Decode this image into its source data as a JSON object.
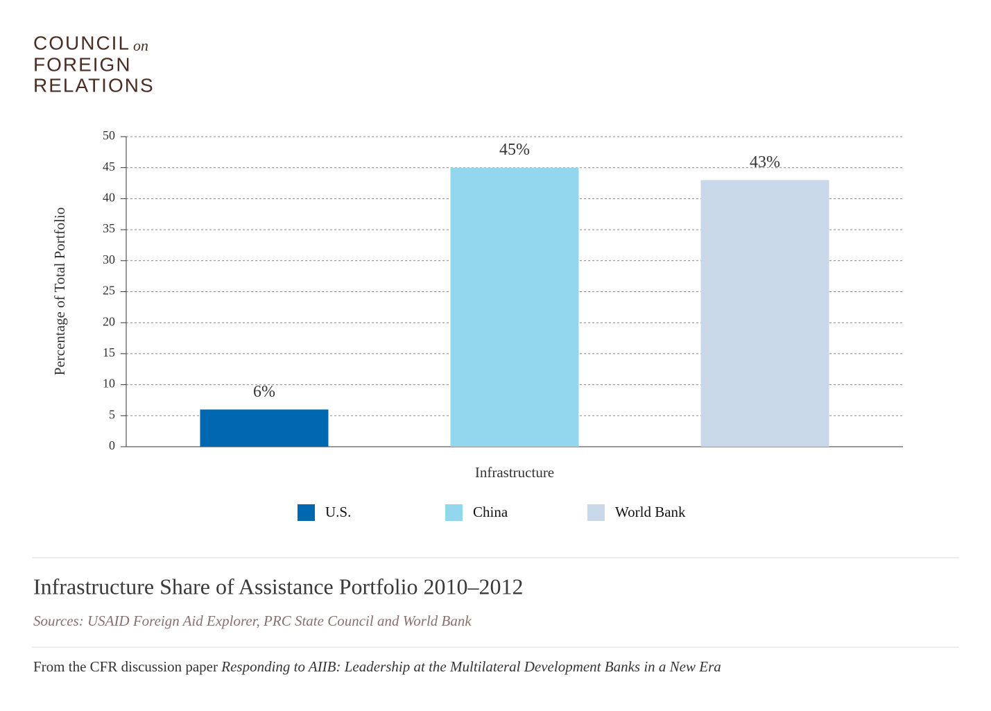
{
  "logo": {
    "line1": "COUNCIL",
    "line1_suffix": "on",
    "line2": "FOREIGN",
    "line3": "RELATIONS"
  },
  "chart_data": {
    "type": "bar",
    "title": "Infrastructure Share of Assistance Portfolio 2010–2012",
    "source": "Sources:  USAID Foreign Aid Explorer, PRC State Council and World Bank",
    "y_label": "Percentage of Total Portfolio",
    "categories": [
      "Infrastructure"
    ],
    "series": [
      {
        "name": "U.S.",
        "color": "#0067b1",
        "values": [
          6
        ],
        "value_labels": [
          "6%"
        ]
      },
      {
        "name": "China",
        "color": "#93d7ee",
        "values": [
          45
        ],
        "value_labels": [
          "45%"
        ]
      },
      {
        "name": "World Bank",
        "color": "#c8d8e8",
        "values": [
          43
        ],
        "value_labels": [
          "43%"
        ]
      }
    ],
    "ylim": [
      0,
      50
    ],
    "yticks": [
      0,
      5,
      10,
      15,
      20,
      25,
      30,
      35,
      40,
      45,
      50
    ],
    "grid": true,
    "legend": "bottom"
  },
  "footer": {
    "text": "From the CFR discussion paper",
    "paper": "Responding to AIIB: Leadership at the Multilateral Development Banks in a New Era"
  }
}
